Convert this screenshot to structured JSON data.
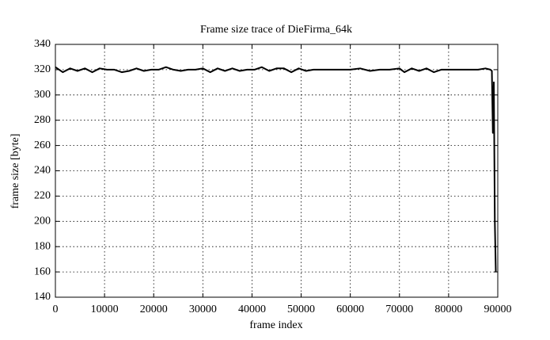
{
  "chart_data": {
    "type": "line",
    "title": "Frame size trace of DieFirma_64k",
    "xlabel": "frame index",
    "ylabel": "frame size [byte]",
    "x": [
      0,
      1500,
      3000,
      4500,
      6000,
      7500,
      9000,
      10500,
      12000,
      13500,
      15000,
      16500,
      18000,
      19500,
      21000,
      22500,
      24000,
      25500,
      27000,
      28500,
      30000,
      31500,
      33000,
      34500,
      36000,
      37500,
      39000,
      40500,
      42000,
      43500,
      45000,
      46500,
      48000,
      49500,
      51000,
      52500,
      54000,
      56000,
      58000,
      60000,
      62000,
      64000,
      66000,
      68000,
      70000,
      71000,
      72500,
      74000,
      75500,
      77000,
      78500,
      80000,
      82000,
      84000,
      86000,
      87500,
      88500,
      88800,
      89000,
      89200,
      89400,
      89600
    ],
    "series": [
      {
        "name": "frame size",
        "color": "#000000",
        "values": [
          322,
          318,
          321,
          319,
          321,
          318,
          321,
          320,
          320,
          318,
          319,
          321,
          319,
          320,
          320,
          322,
          320,
          319,
          320,
          320,
          321,
          318,
          321,
          319,
          321,
          319,
          320,
          320,
          322,
          319,
          321,
          321,
          318,
          321,
          319,
          320,
          320,
          320,
          320,
          320,
          321,
          319,
          320,
          320,
          321,
          318,
          321,
          319,
          321,
          318,
          320,
          320,
          320,
          320,
          320,
          321,
          320,
          319,
          270,
          310,
          200,
          160
        ]
      }
    ],
    "xlim": [
      0,
      90000
    ],
    "ylim": [
      140,
      340
    ],
    "xticks": [
      0,
      10000,
      20000,
      30000,
      40000,
      50000,
      60000,
      70000,
      80000,
      90000
    ],
    "yticks": [
      140,
      160,
      180,
      200,
      220,
      240,
      260,
      280,
      300,
      320,
      340
    ],
    "grid": true
  }
}
